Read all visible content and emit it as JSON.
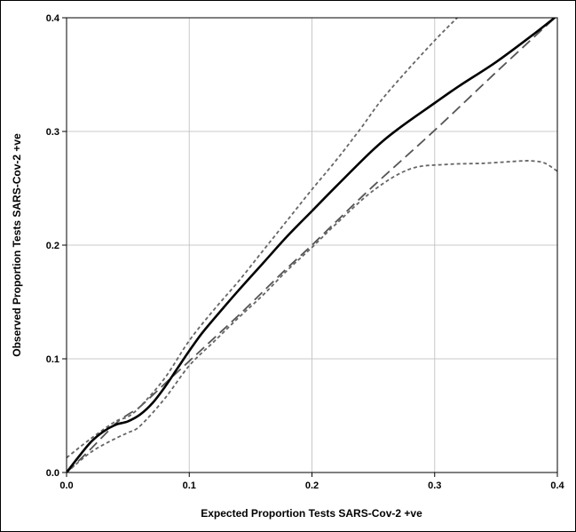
{
  "chart_data": {
    "type": "line",
    "xlabel": "Expected Proportion Tests SARS-Cov-2 +ve",
    "ylabel": "Observed Proportion Tests SARS-Cov-2 +ve",
    "xlim": [
      0.0,
      0.4
    ],
    "ylim": [
      0.0,
      0.4
    ],
    "x_ticks": [
      "0.0",
      "0.1",
      "0.2",
      "0.3",
      "0.4"
    ],
    "y_ticks": [
      "0.0",
      "0.1",
      "0.2",
      "0.3",
      "0.4"
    ],
    "grid": true,
    "legend": "none",
    "series": [
      {
        "style": "solid",
        "color": "#000000",
        "x": [
          0.0,
          0.01,
          0.02,
          0.03,
          0.04,
          0.05,
          0.06,
          0.07,
          0.08,
          0.09,
          0.1,
          0.11,
          0.12,
          0.14,
          0.16,
          0.18,
          0.2,
          0.22,
          0.25,
          0.27,
          0.3,
          0.32,
          0.35,
          0.38,
          0.4
        ],
        "y": [
          0.0,
          0.014,
          0.027,
          0.036,
          0.042,
          0.045,
          0.051,
          0.061,
          0.075,
          0.091,
          0.107,
          0.122,
          0.135,
          0.16,
          0.184,
          0.208,
          0.23,
          0.252,
          0.284,
          0.302,
          0.325,
          0.34,
          0.361,
          0.385,
          0.402
        ]
      },
      {
        "style": "long-dash",
        "color": "#555555",
        "x": [
          0.0,
          0.02,
          0.04,
          0.05,
          0.06,
          0.08,
          0.1,
          0.12,
          0.14,
          0.16,
          0.18,
          0.2,
          0.22,
          0.25,
          0.3,
          0.35,
          0.4
        ],
        "y": [
          0.0,
          0.021,
          0.043,
          0.051,
          0.058,
          0.078,
          0.098,
          0.118,
          0.138,
          0.159,
          0.18,
          0.2,
          0.221,
          0.252,
          0.301,
          0.352,
          0.402
        ]
      },
      {
        "style": "short-dash",
        "color": "#666666",
        "x": [
          0.0,
          0.02,
          0.04,
          0.05,
          0.06,
          0.08,
          0.1,
          0.12,
          0.14,
          0.16,
          0.18,
          0.2,
          0.22,
          0.24,
          0.26,
          0.3,
          0.33
        ],
        "y": [
          0.013,
          0.03,
          0.045,
          0.049,
          0.058,
          0.083,
          0.116,
          0.143,
          0.168,
          0.195,
          0.222,
          0.249,
          0.275,
          0.303,
          0.332,
          0.38,
          0.412
        ]
      },
      {
        "style": "short-dash",
        "color": "#666666",
        "x": [
          0.0,
          0.02,
          0.04,
          0.05,
          0.06,
          0.08,
          0.1,
          0.12,
          0.14,
          0.16,
          0.18,
          0.2,
          0.22,
          0.25,
          0.28,
          0.31,
          0.34,
          0.37,
          0.38,
          0.39,
          0.4
        ],
        "y": [
          0.0,
          0.018,
          0.03,
          0.035,
          0.041,
          0.065,
          0.094,
          0.115,
          0.136,
          0.156,
          0.178,
          0.198,
          0.219,
          0.248,
          0.267,
          0.271,
          0.272,
          0.274,
          0.274,
          0.272,
          0.265
        ]
      }
    ]
  }
}
